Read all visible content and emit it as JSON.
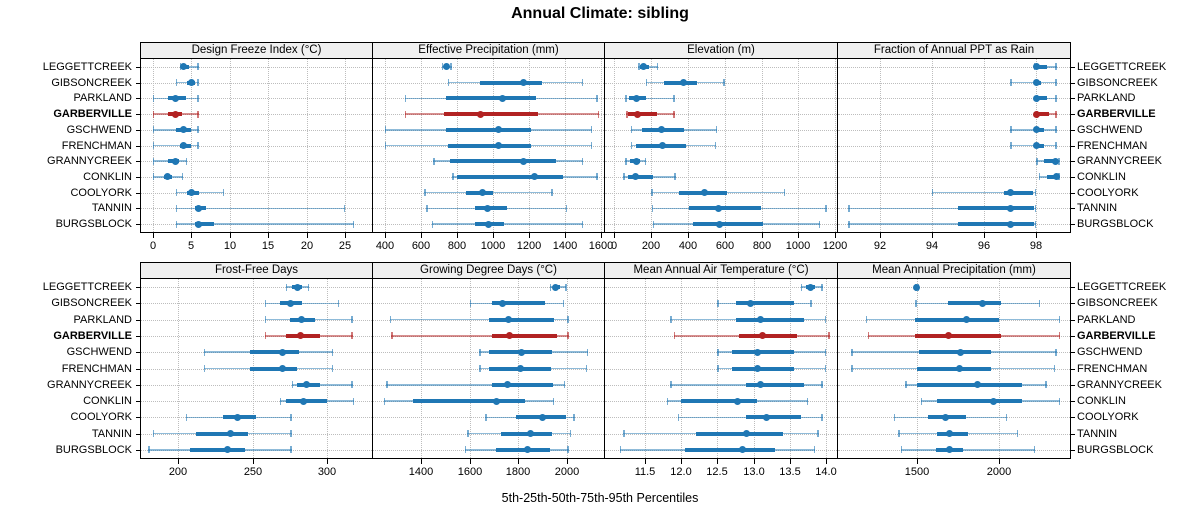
{
  "title": "Annual Climate: sibling",
  "caption": "5th-25th-50th-75th-95th Percentiles",
  "percentile_labels": [
    "5th",
    "25th",
    "50th",
    "75th",
    "95th"
  ],
  "sites": [
    "LEGGETTCREEK",
    "GIBSONCREEK",
    "PARKLAND",
    "GARBERVILLE",
    "GSCHWEND",
    "FRENCHMAN",
    "GRANNYCREEK",
    "CONKLIN",
    "COOLYORK",
    "TANNIN",
    "BURGSBLOCK"
  ],
  "highlight_site": "GARBERVILLE",
  "colors": {
    "series": "#1f77b4",
    "highlight": "#b22222",
    "grid": "#bdbdbd",
    "strip_bg": "#f0f0f0",
    "border": "#000000"
  },
  "chart_data": [
    {
      "type": "interval-dotplot",
      "title": "Design Freeze Index (°C)",
      "xlim": [
        -1.5,
        28.5
      ],
      "ticks": [
        0,
        5,
        10,
        15,
        20,
        25
      ],
      "tick_labels": [
        "0",
        "5",
        "10",
        "15",
        "20",
        "25"
      ],
      "values": [
        [
          3.5,
          3.8,
          4,
          4.8,
          6
        ],
        [
          3,
          4.5,
          5,
          5.5,
          6
        ],
        [
          0,
          2,
          3,
          4.3,
          6
        ],
        [
          0,
          2,
          3,
          3.8,
          6
        ],
        [
          0,
          3,
          4,
          5,
          6
        ],
        [
          0,
          3.5,
          4,
          5,
          6
        ],
        [
          0,
          2,
          3,
          3.5,
          4.5
        ],
        [
          0,
          1.5,
          2,
          2.5,
          4
        ],
        [
          3,
          4.5,
          5,
          6,
          9.3
        ],
        [
          3,
          5.5,
          6,
          7,
          25
        ],
        [
          3,
          5.5,
          6,
          8,
          26.2
        ]
      ]
    },
    {
      "type": "interval-dotplot",
      "title": "Effective Precipitation (mm)",
      "xlim": [
        335,
        1615
      ],
      "ticks": [
        400,
        600,
        800,
        1000,
        1200,
        1400,
        1600
      ],
      "tick_labels": [
        "400",
        "600",
        "800",
        "1000",
        "1200",
        "1400",
        "1600"
      ],
      "values": [
        [
          715,
          730,
          740,
          755,
          770
        ],
        [
          750,
          930,
          1170,
          1270,
          1500
        ],
        [
          510,
          740,
          1050,
          1240,
          1580
        ],
        [
          510,
          730,
          930,
          1250,
          1590
        ],
        [
          400,
          740,
          1030,
          1210,
          1550
        ],
        [
          400,
          750,
          1030,
          1210,
          1550
        ],
        [
          670,
          760,
          1170,
          1350,
          1500
        ],
        [
          775,
          800,
          1230,
          1390,
          1580
        ],
        [
          620,
          850,
          940,
          1000,
          1330
        ],
        [
          630,
          900,
          970,
          1080,
          1410
        ],
        [
          660,
          900,
          975,
          1060,
          1500
        ]
      ]
    },
    {
      "type": "interval-dotplot",
      "title": "Elevation (m)",
      "xlim": [
        -50,
        1210
      ],
      "ticks": [
        0,
        200,
        400,
        600,
        800,
        1000,
        1200
      ],
      "tick_labels": [
        "0",
        "200",
        "400",
        "600",
        "800",
        "1000",
        "1200"
      ],
      "values": [
        [
          130,
          140,
          160,
          190,
          240
        ],
        [
          170,
          270,
          375,
          450,
          600
        ],
        [
          60,
          80,
          120,
          175,
          330
        ],
        [
          65,
          75,
          125,
          230,
          330
        ],
        [
          90,
          150,
          255,
          380,
          560
        ],
        [
          90,
          120,
          260,
          390,
          555
        ],
        [
          60,
          85,
          120,
          140,
          175
        ],
        [
          50,
          75,
          115,
          210,
          335
        ],
        [
          200,
          350,
          490,
          610,
          930
        ],
        [
          205,
          405,
          565,
          800,
          1155
        ],
        [
          210,
          430,
          570,
          810,
          1120
        ]
      ]
    },
    {
      "type": "interval-dotplot",
      "title": "Fraction of Annual PPT as Rain",
      "xlim": [
        90.4,
        99.3
      ],
      "ticks": [
        92,
        94,
        96,
        98
      ],
      "tick_labels": [
        "92",
        "94",
        "96",
        "98"
      ],
      "values": [
        [
          97.9,
          98,
          98,
          98.4,
          98.8
        ],
        [
          97,
          97.9,
          98,
          98.2,
          98.8
        ],
        [
          98,
          98,
          98,
          98.4,
          98.8
        ],
        [
          98,
          98,
          98,
          98.5,
          98.8
        ],
        [
          97,
          97.9,
          98,
          98.3,
          98.8
        ],
        [
          97,
          97.9,
          98,
          98.3,
          98.8
        ],
        [
          98,
          98.3,
          98.75,
          98.8,
          98.9
        ],
        [
          98.1,
          98.4,
          98.8,
          98.85,
          98.9
        ],
        [
          94,
          96.75,
          97,
          97.9,
          98
        ],
        [
          90.8,
          95,
          97,
          97.9,
          98
        ],
        [
          90.8,
          95,
          97,
          97.9,
          98
        ]
      ]
    },
    {
      "type": "interval-dotplot",
      "title": "Frost-Free Days",
      "xlim": [
        175,
        330
      ],
      "ticks": [
        200,
        250,
        300
      ],
      "tick_labels": [
        "200",
        "250",
        "300"
      ],
      "values": [
        [
          272,
          276,
          280,
          283,
          288
        ],
        [
          258,
          268,
          275,
          283,
          308
        ],
        [
          258,
          275,
          283,
          292,
          317
        ],
        [
          258,
          272,
          282,
          295,
          317
        ],
        [
          217,
          248,
          270,
          281,
          304
        ],
        [
          217,
          248,
          270,
          280,
          304
        ],
        [
          276,
          280,
          286,
          295,
          317
        ],
        [
          268,
          272,
          284,
          300,
          318
        ],
        [
          205,
          230,
          240,
          252,
          276
        ],
        [
          183,
          212,
          235,
          247,
          276
        ],
        [
          180,
          208,
          233,
          245,
          276
        ]
      ]
    },
    {
      "type": "interval-dotplot",
      "title": "Growing Degree Days (°C)",
      "xlim": [
        1200,
        2155
      ],
      "ticks": [
        1400,
        1600,
        1800,
        2000
      ],
      "tick_labels": [
        "1400",
        "1600",
        "1800",
        "2000"
      ],
      "values": [
        [
          1930,
          1945,
          1955,
          1975,
          2000
        ],
        [
          1600,
          1690,
          1735,
          1910,
          1990
        ],
        [
          1270,
          1680,
          1760,
          1950,
          2010
        ],
        [
          1275,
          1690,
          1765,
          1960,
          2010
        ],
        [
          1640,
          1680,
          1815,
          1940,
          2090
        ],
        [
          1640,
          1680,
          1810,
          1935,
          2085
        ],
        [
          1255,
          1690,
          1755,
          1945,
          1995
        ],
        [
          1245,
          1365,
          1710,
          1830,
          1950
        ],
        [
          1665,
          1790,
          1900,
          2000,
          2035
        ],
        [
          1590,
          1730,
          1850,
          1940,
          2020
        ],
        [
          1580,
          1710,
          1840,
          1930,
          2010
        ]
      ]
    },
    {
      "type": "interval-dotplot",
      "title": "Mean Annual Air Temperature (°C)",
      "xlim": [
        10.95,
        14.15
      ],
      "ticks": [
        11.5,
        12,
        12.5,
        13,
        13.5,
        14
      ],
      "tick_labels": [
        "11.5",
        "12.0",
        "12.5",
        "13.0",
        "13.5",
        "14.0"
      ],
      "values": [
        [
          13.65,
          13.72,
          13.78,
          13.85,
          13.95
        ],
        [
          12.5,
          12.75,
          12.95,
          13.55,
          13.8
        ],
        [
          11.85,
          12.75,
          13.1,
          13.7,
          14.0
        ],
        [
          11.9,
          12.8,
          13.12,
          13.6,
          14.05
        ],
        [
          12.5,
          12.7,
          13.05,
          13.55,
          14.0
        ],
        [
          12.5,
          12.7,
          13.05,
          13.55,
          14.0
        ],
        [
          11.85,
          12.9,
          13.1,
          13.7,
          13.95
        ],
        [
          11.8,
          12.0,
          12.78,
          13.05,
          13.75
        ],
        [
          11.95,
          12.9,
          13.18,
          13.65,
          13.95
        ],
        [
          11.2,
          12.2,
          12.9,
          13.4,
          13.9
        ],
        [
          11.15,
          12.05,
          12.85,
          13.3,
          13.85
        ]
      ]
    },
    {
      "type": "interval-dotplot",
      "title": "Mean Annual Precipitation (mm)",
      "xlim": [
        1020,
        2430
      ],
      "ticks": [
        1500,
        2000
      ],
      "tick_labels": [
        "1500",
        "2000"
      ],
      "values": [
        [
          1485,
          1492,
          1500,
          1508,
          1515
        ],
        [
          1490,
          1690,
          1900,
          2010,
          2250
        ],
        [
          1190,
          1490,
          1800,
          2000,
          2370
        ],
        [
          1200,
          1490,
          1690,
          2010,
          2370
        ],
        [
          1100,
          1510,
          1765,
          1950,
          2350
        ],
        [
          1100,
          1500,
          1760,
          1950,
          2340
        ],
        [
          1430,
          1500,
          1870,
          2140,
          2290
        ],
        [
          1524,
          1620,
          1964,
          2140,
          2370
        ],
        [
          1360,
          1566,
          1676,
          1800,
          2050
        ],
        [
          1386,
          1620,
          1698,
          1810,
          2116
        ],
        [
          1400,
          1616,
          1696,
          1780,
          2220
        ]
      ]
    }
  ]
}
